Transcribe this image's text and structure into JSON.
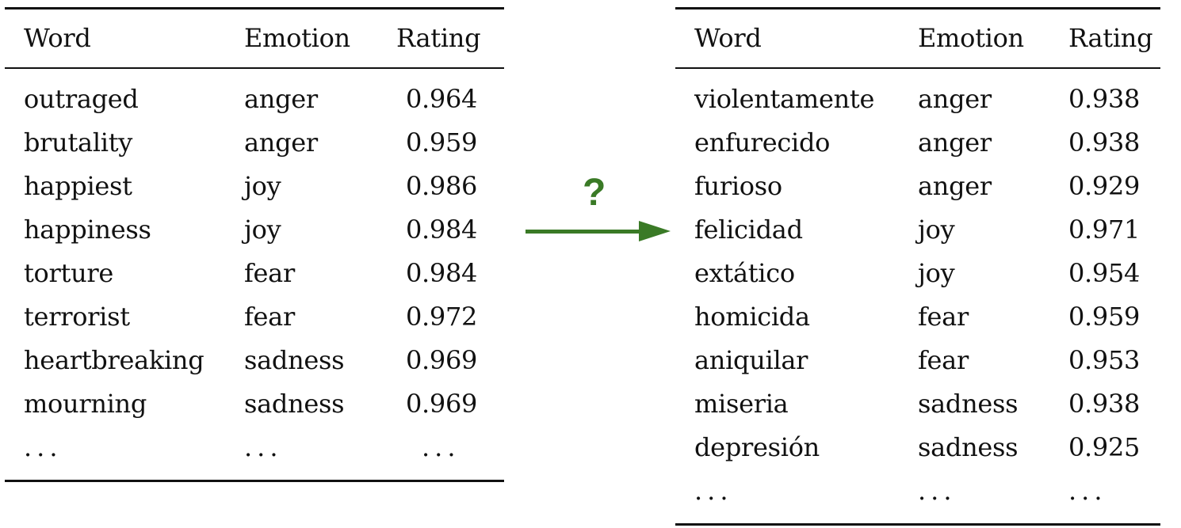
{
  "arrow_label": "?",
  "arrow_color": "#3a7a26",
  "left_table": {
    "headers": [
      "Word",
      "Emotion",
      "Rating"
    ],
    "rows": [
      [
        "outraged",
        "anger",
        "0.964"
      ],
      [
        "brutality",
        "anger",
        "0.959"
      ],
      [
        "happiest",
        "joy",
        "0.986"
      ],
      [
        "happiness",
        "joy",
        "0.984"
      ],
      [
        "torture",
        "fear",
        "0.984"
      ],
      [
        "terrorist",
        "fear",
        "0.972"
      ],
      [
        "heartbreaking",
        "sadness",
        "0.969"
      ],
      [
        "mourning",
        "sadness",
        "0.969"
      ],
      [
        "...",
        "...",
        "..."
      ]
    ]
  },
  "right_table": {
    "headers": [
      "Word",
      "Emotion",
      "Rating"
    ],
    "rows": [
      [
        "violentamente",
        "anger",
        "0.938"
      ],
      [
        "enfurecido",
        "anger",
        "0.938"
      ],
      [
        "furioso",
        "anger",
        "0.929"
      ],
      [
        "felicidad",
        "joy",
        "0.971"
      ],
      [
        "extático",
        "joy",
        "0.954"
      ],
      [
        "homicida",
        "fear",
        "0.959"
      ],
      [
        "aniquilar",
        "fear",
        "0.953"
      ],
      [
        "miseria",
        "sadness",
        "0.938"
      ],
      [
        "depresión",
        "sadness",
        "0.925"
      ],
      [
        "...",
        "...",
        "..."
      ]
    ]
  }
}
